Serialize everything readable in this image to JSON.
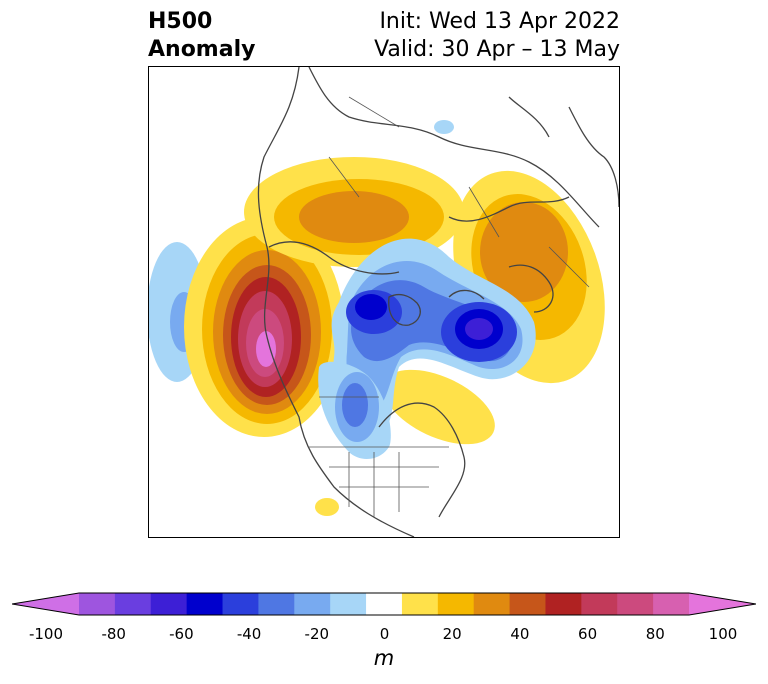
{
  "header": {
    "title_line1": "H500",
    "title_line2": "Anomaly",
    "init": "Init: Wed 13 Apr 2022",
    "valid": "Valid: 30 Apr – 13 May"
  },
  "colorbar": {
    "units": "m",
    "ticks": [
      "-100",
      "-80",
      "-60",
      "-40",
      "-20",
      "0",
      "20",
      "40",
      "60",
      "80",
      "100"
    ],
    "colors": [
      "#9e55df",
      "#6a3ee0",
      "#3d1fd6",
      "#0000cd",
      "#2b3fdc",
      "#4f77e3",
      "#78aaf0",
      "#a7d6f7",
      "#ffffff",
      "#ffe14a",
      "#f5b800",
      "#e08a10",
      "#c6561a",
      "#b02222",
      "#c23a5a",
      "#cc4a7e",
      "#d760b0"
    ],
    "extend_min_color": "#cf6fe6",
    "extend_max_color": "#e474dc"
  }
}
